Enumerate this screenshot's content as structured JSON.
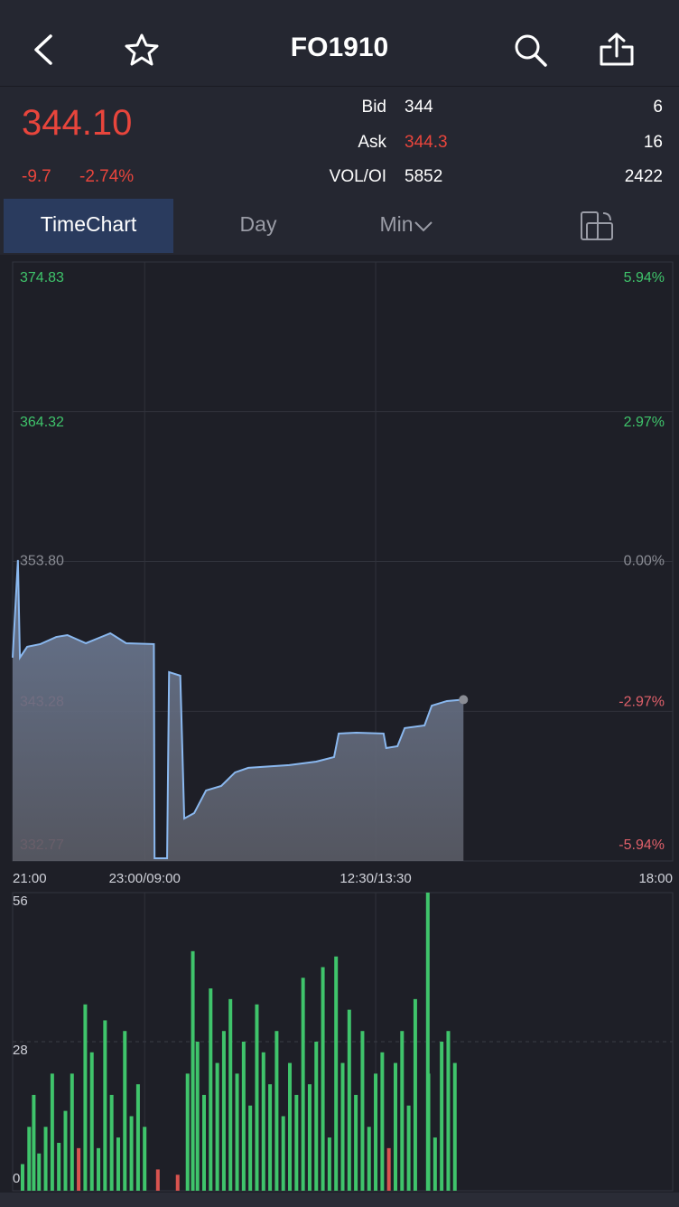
{
  "header": {
    "title": "FO1910"
  },
  "quote": {
    "last": "344.10",
    "change": "-9.7",
    "change_pct": "-2.74%",
    "rows": [
      {
        "label": "Bid",
        "value": "344",
        "size": "6"
      },
      {
        "label": "Ask",
        "value": "344.3",
        "size": "16"
      },
      {
        "label": "VOL/OI",
        "value": "5852",
        "size": "2422"
      }
    ]
  },
  "tabs": [
    "TimeChart",
    "Day",
    "Min"
  ],
  "chart_data": [
    {
      "type": "area",
      "color": "#8ab8ef",
      "x": [
        0,
        0.8,
        1.1,
        2.2,
        4.2,
        6.6,
        8.3,
        11.1,
        13.1,
        14.8,
        17.2,
        21.4,
        21.5,
        23.4,
        23.7,
        25.4,
        26.0,
        27.5,
        29.3,
        31.6,
        33.7,
        35.7,
        41.9,
        46.0,
        48.7,
        49.4,
        52.1,
        56.2,
        56.6,
        58.3,
        59.4,
        62.4,
        63.5,
        65.8,
        68.3
      ],
      "values": [
        347.05,
        353.9,
        347.05,
        347.81,
        348.0,
        348.5,
        348.63,
        348.06,
        348.44,
        348.76,
        348.06,
        348.0,
        332.96,
        332.96,
        346.03,
        345.78,
        335.75,
        336.13,
        337.72,
        338.04,
        338.99,
        339.31,
        339.5,
        339.75,
        340.07,
        341.72,
        341.78,
        341.72,
        340.7,
        340.83,
        342.1,
        342.29,
        343.68,
        344.0,
        344.1
      ],
      "xlim": [
        0,
        100
      ],
      "xticks": [
        {
          "value": 0,
          "label": "21:00"
        },
        {
          "value": 20,
          "label": "23:00/09:00"
        },
        {
          "value": 55,
          "label": "12:30/13:30"
        },
        {
          "value": 100,
          "label": "18:00"
        }
      ],
      "ylim": [
        332.77,
        374.83
      ],
      "yticks": [
        374.83,
        364.32,
        {
          "value": 353.8,
          "label": "353.80"
        },
        343.28,
        332.77
      ],
      "y2lim": [
        -5.94,
        5.94
      ],
      "y2ticks": [
        {
          "value": 5.94,
          "label": "5.94%"
        },
        {
          "value": 2.97,
          "label": "2.97%"
        },
        {
          "value": 0,
          "label": "0.00%"
        },
        {
          "value": -2.97,
          "label": "-2.97%"
        },
        {
          "value": -5.94,
          "label": "-5.94%"
        }
      ],
      "grid": true
    },
    {
      "type": "bar",
      "x": [
        1.5,
        2.5,
        3.2,
        4,
        5,
        6,
        7,
        8,
        9,
        10,
        11,
        12,
        13,
        14,
        15,
        16,
        17,
        18,
        19,
        20,
        22,
        25,
        26.5,
        27.3,
        28,
        29,
        30,
        31,
        32,
        33,
        34,
        35,
        36,
        37,
        38,
        39,
        40,
        41,
        42,
        43,
        44,
        45,
        46,
        47,
        48,
        49,
        50,
        51,
        52,
        53,
        54,
        55,
        56,
        57,
        58,
        59,
        60,
        61,
        62.9,
        63,
        64,
        65,
        66,
        67
      ],
      "values": [
        5,
        12,
        18,
        7,
        12,
        22,
        9,
        15,
        22,
        8,
        35,
        26,
        8,
        32,
        18,
        10,
        30,
        14,
        20,
        12,
        4,
        3,
        22,
        45,
        28,
        18,
        38,
        24,
        30,
        36,
        22,
        28,
        16,
        35,
        26,
        20,
        30,
        14,
        24,
        18,
        40,
        20,
        28,
        42,
        10,
        44,
        24,
        34,
        18,
        30,
        12,
        22,
        26,
        8,
        24,
        30,
        16,
        36,
        56,
        22,
        10,
        28,
        30,
        24
      ],
      "colors": [
        "#3fc46b",
        "#3fc46b",
        "#3fc46b",
        "#3fc46b",
        "#3fc46b",
        "#3fc46b",
        "#3fc46b",
        "#3fc46b",
        "#3fc46b",
        "#d9534f",
        "#3fc46b",
        "#3fc46b",
        "#3fc46b",
        "#3fc46b",
        "#3fc46b",
        "#3fc46b",
        "#3fc46b",
        "#3fc46b",
        "#3fc46b",
        "#3fc46b",
        "#d9534f",
        "#d9534f",
        "#3fc46b",
        "#3fc46b",
        "#3fc46b",
        "#3fc46b",
        "#3fc46b",
        "#3fc46b",
        "#3fc46b",
        "#3fc46b",
        "#3fc46b",
        "#3fc46b",
        "#3fc46b",
        "#3fc46b",
        "#3fc46b",
        "#3fc46b",
        "#3fc46b",
        "#3fc46b",
        "#3fc46b",
        "#3fc46b",
        "#3fc46b",
        "#3fc46b",
        "#3fc46b",
        "#3fc46b",
        "#3fc46b",
        "#3fc46b",
        "#3fc46b",
        "#3fc46b",
        "#3fc46b",
        "#3fc46b",
        "#3fc46b",
        "#3fc46b",
        "#3fc46b",
        "#d9534f",
        "#3fc46b",
        "#3fc46b",
        "#3fc46b",
        "#3fc46b",
        "#3fc46b",
        "#3fc46b",
        "#3fc46b",
        "#3fc46b",
        "#3fc46b",
        "#3fc46b"
      ],
      "xlim": [
        0,
        100
      ],
      "ylim": [
        0,
        56
      ],
      "yticks": [
        0,
        28,
        56
      ]
    }
  ]
}
